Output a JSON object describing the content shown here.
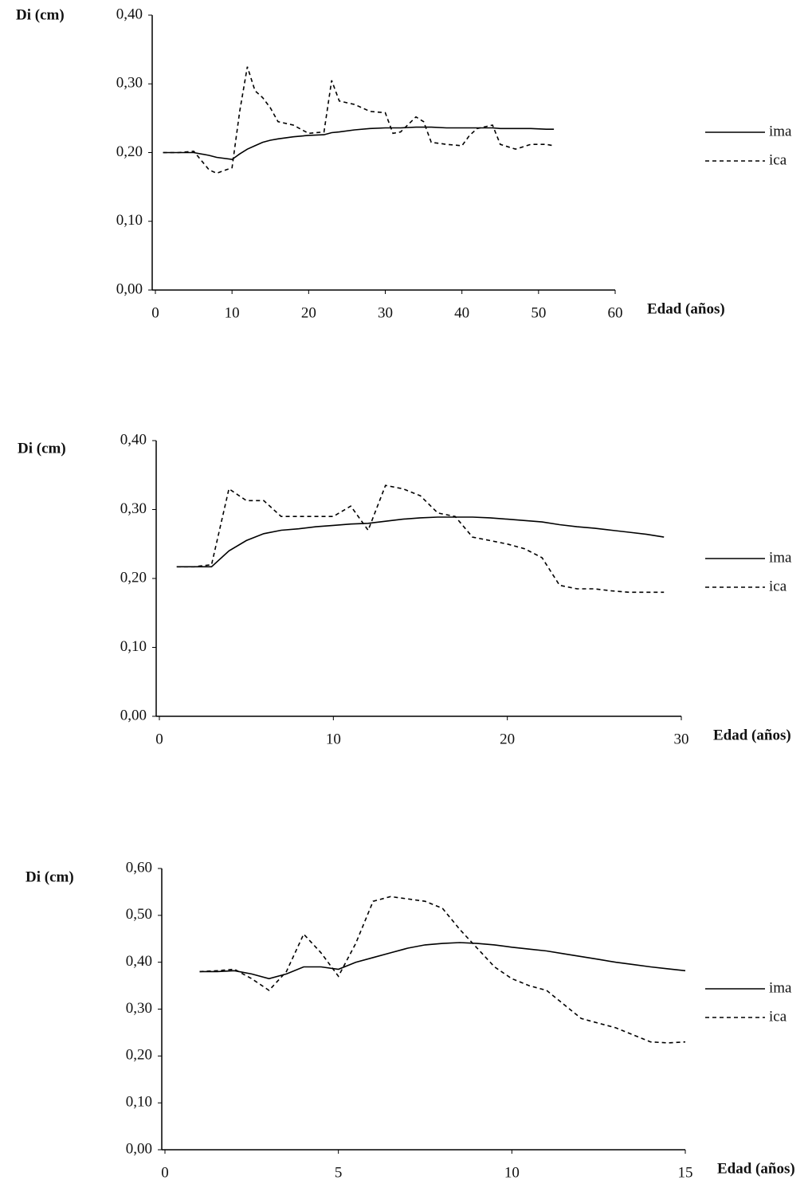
{
  "chart_data": [
    {
      "type": "line",
      "y_label": "Di (cm)",
      "x_label": "Edad (años)",
      "x": [
        1,
        3,
        5,
        7,
        8,
        10,
        11,
        12,
        13,
        14,
        15,
        16,
        18,
        20,
        22,
        23,
        24,
        26,
        28,
        30,
        31,
        32,
        34,
        35,
        36,
        38,
        40,
        41,
        42,
        44,
        45,
        47,
        49,
        51,
        52
      ],
      "series": [
        {
          "name": "ima",
          "color": "#000000",
          "dash": "solid",
          "values": [
            0.2,
            0.2,
            0.2,
            0.196,
            0.193,
            0.19,
            0.198,
            0.205,
            0.21,
            0.215,
            0.218,
            0.22,
            0.223,
            0.225,
            0.226,
            0.229,
            0.23,
            0.233,
            0.235,
            0.236,
            0.236,
            0.236,
            0.237,
            0.237,
            0.237,
            0.236,
            0.236,
            0.236,
            0.236,
            0.236,
            0.235,
            0.235,
            0.235,
            0.234,
            0.234
          ]
        },
        {
          "name": "ica",
          "color": "#000000",
          "dash": "dashed",
          "values": [
            0.2,
            0.2,
            0.202,
            0.175,
            0.17,
            0.178,
            0.26,
            0.325,
            0.29,
            0.28,
            0.265,
            0.245,
            0.24,
            0.228,
            0.23,
            0.305,
            0.275,
            0.27,
            0.26,
            0.258,
            0.228,
            0.23,
            0.252,
            0.245,
            0.215,
            0.212,
            0.21,
            0.225,
            0.235,
            0.24,
            0.212,
            0.205,
            0.212,
            0.212,
            0.21
          ]
        }
      ],
      "xlim": [
        0,
        60
      ],
      "xticks": [
        0,
        10,
        20,
        30,
        40,
        50,
        60
      ],
      "ylim": [
        0,
        0.4
      ],
      "yticks": [
        {
          "value": 0,
          "label": "0,00"
        },
        {
          "value": 0.1,
          "label": "0,10"
        },
        {
          "value": 0.2,
          "label": "0,20"
        },
        {
          "value": 0.3,
          "label": "0,30"
        },
        {
          "value": 0.4,
          "label": "0,40"
        }
      ],
      "grid": false
    },
    {
      "type": "line",
      "y_label": "Di (cm)",
      "x_label": "Edad (años)",
      "x": [
        1,
        2,
        3,
        4,
        5,
        6,
        7,
        8,
        9,
        10,
        11,
        12,
        13,
        14,
        15,
        16,
        17,
        18,
        19,
        20,
        21,
        22,
        23,
        24,
        25,
        26,
        27,
        28,
        29
      ],
      "series": [
        {
          "name": "ima",
          "color": "#000000",
          "dash": "solid",
          "values": [
            0.217,
            0.217,
            0.217,
            0.24,
            0.255,
            0.265,
            0.27,
            0.272,
            0.275,
            0.277,
            0.279,
            0.28,
            0.283,
            0.286,
            0.288,
            0.289,
            0.289,
            0.289,
            0.288,
            0.286,
            0.284,
            0.282,
            0.278,
            0.275,
            0.273,
            0.27,
            0.267,
            0.264,
            0.26
          ]
        },
        {
          "name": "ica",
          "color": "#000000",
          "dash": "dashed",
          "values": [
            0.217,
            0.217,
            0.22,
            0.33,
            0.313,
            0.313,
            0.29,
            0.29,
            0.29,
            0.29,
            0.305,
            0.27,
            0.335,
            0.33,
            0.32,
            0.295,
            0.29,
            0.26,
            0.255,
            0.25,
            0.243,
            0.23,
            0.19,
            0.185,
            0.185,
            0.182,
            0.18,
            0.18,
            0.18
          ]
        }
      ],
      "xlim": [
        0,
        30
      ],
      "xticks": [
        0,
        10,
        20,
        30
      ],
      "ylim": [
        0,
        0.4
      ],
      "yticks": [
        {
          "value": 0,
          "label": "0,00"
        },
        {
          "value": 0.1,
          "label": "0,10"
        },
        {
          "value": 0.2,
          "label": "0,20"
        },
        {
          "value": 0.3,
          "label": "0,30"
        },
        {
          "value": 0.4,
          "label": "0,40"
        }
      ],
      "grid": false
    },
    {
      "type": "line",
      "y_label": "Di (cm)",
      "x_label": "Edad (años)",
      "x": [
        1,
        1.5,
        2,
        2.5,
        3,
        3.5,
        4,
        4.5,
        5,
        5.5,
        6,
        6.5,
        7,
        7.5,
        8,
        8.5,
        9,
        9.5,
        10,
        10.5,
        11,
        11.5,
        12,
        12.5,
        13,
        13.5,
        14,
        14.5,
        15
      ],
      "series": [
        {
          "name": "ima",
          "color": "#000000",
          "dash": "solid",
          "values": [
            0.38,
            0.38,
            0.382,
            0.375,
            0.365,
            0.375,
            0.39,
            0.39,
            0.385,
            0.4,
            0.41,
            0.42,
            0.43,
            0.437,
            0.44,
            0.442,
            0.44,
            0.437,
            0.432,
            0.428,
            0.424,
            0.418,
            0.412,
            0.406,
            0.4,
            0.395,
            0.39,
            0.386,
            0.382
          ]
        },
        {
          "name": "ica",
          "color": "#000000",
          "dash": "dashed",
          "values": [
            0.38,
            0.382,
            0.385,
            0.365,
            0.34,
            0.38,
            0.46,
            0.42,
            0.37,
            0.44,
            0.53,
            0.54,
            0.535,
            0.53,
            0.515,
            0.47,
            0.43,
            0.39,
            0.365,
            0.35,
            0.34,
            0.31,
            0.28,
            0.27,
            0.26,
            0.245,
            0.23,
            0.228,
            0.23
          ]
        }
      ],
      "xlim": [
        0,
        15
      ],
      "xticks": [
        0,
        5,
        10,
        15
      ],
      "ylim": [
        0,
        0.6
      ],
      "yticks": [
        {
          "value": 0,
          "label": "0,00"
        },
        {
          "value": 0.1,
          "label": "0,10"
        },
        {
          "value": 0.2,
          "label": "0,20"
        },
        {
          "value": 0.3,
          "label": "0,30"
        },
        {
          "value": 0.4,
          "label": "0,40"
        },
        {
          "value": 0.5,
          "label": "0,50"
        },
        {
          "value": 0.6,
          "label": "0,60"
        }
      ],
      "grid": false
    }
  ]
}
